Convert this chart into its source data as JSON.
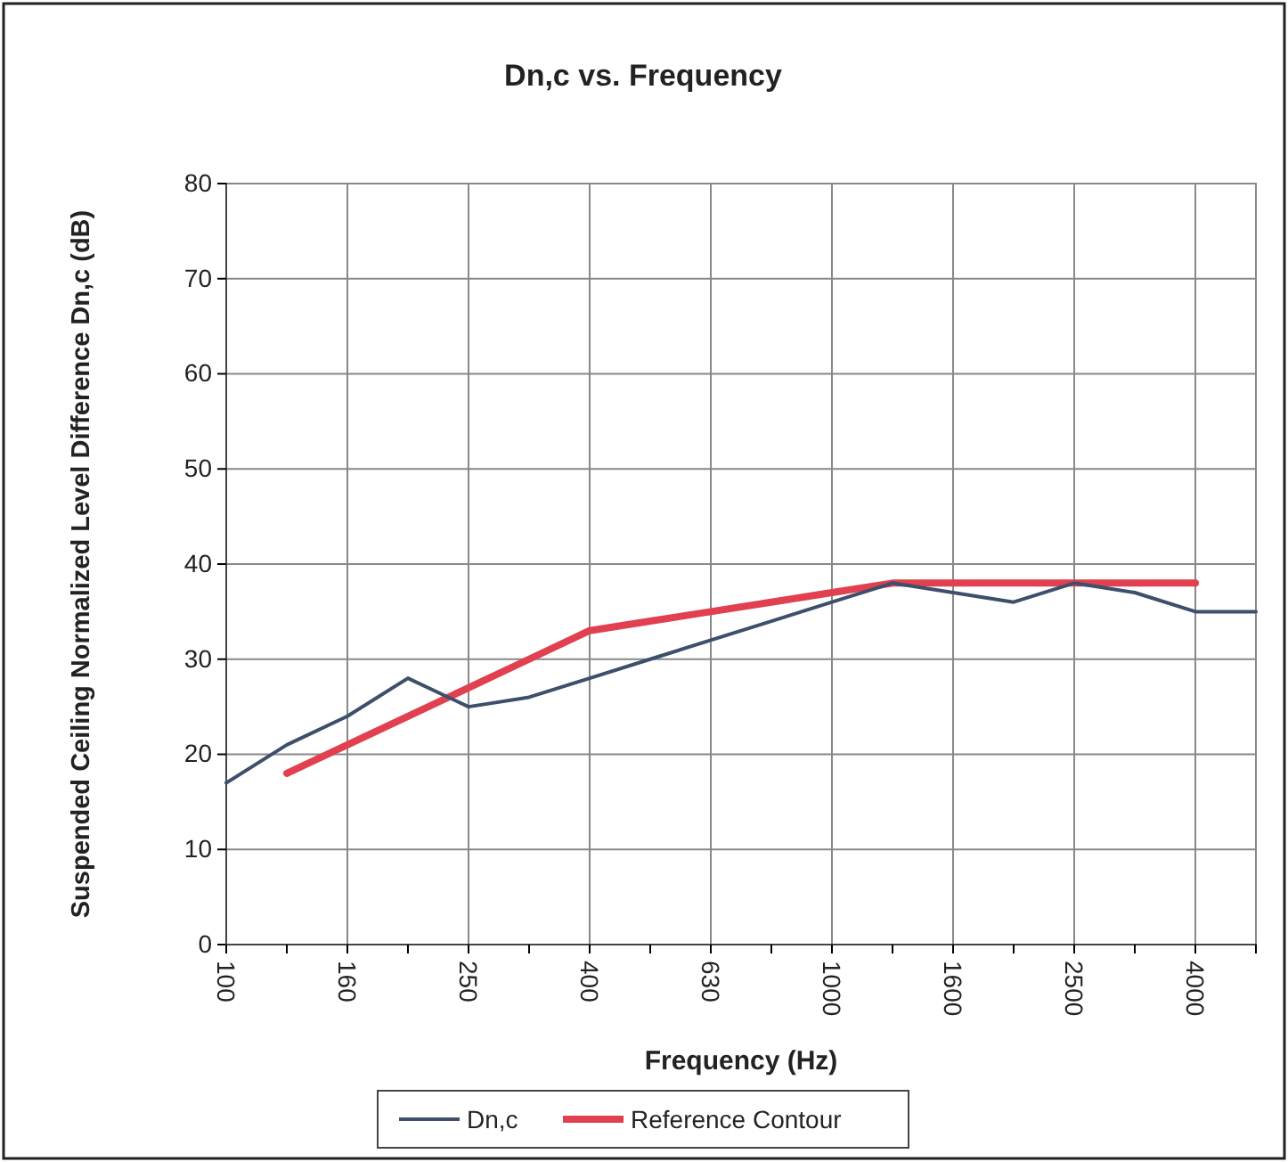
{
  "chart_data": {
    "type": "line",
    "title": "Dn,c vs. Frequency",
    "xlabel": "Frequency (Hz)",
    "ylabel": "Suspended Ceiling Normalized Level Difference Dn,c (dB)",
    "categories": [
      "100",
      null,
      "160",
      null,
      "250",
      null,
      "400",
      null,
      "630",
      null,
      "1000",
      null,
      "1600",
      null,
      "2500",
      null,
      "4000",
      null
    ],
    "series": [
      {
        "name": "Dn,c",
        "color": "#3d4f6b",
        "values": [
          17,
          21,
          24,
          28,
          25,
          26,
          28,
          30,
          32,
          34,
          36,
          38,
          37,
          36,
          38,
          37,
          35,
          35
        ]
      },
      {
        "name": "Reference Contour",
        "color": "#e0404f",
        "values": [
          null,
          18,
          21,
          24,
          27,
          30,
          33,
          34,
          35,
          36,
          37,
          38,
          38,
          38,
          38,
          38,
          38,
          null
        ]
      }
    ],
    "ylim": [
      0,
      80
    ],
    "yticks": [
      0,
      10,
      20,
      30,
      40,
      50,
      60,
      70,
      80
    ],
    "grid": true,
    "legend": "bottom",
    "marker": "none"
  }
}
